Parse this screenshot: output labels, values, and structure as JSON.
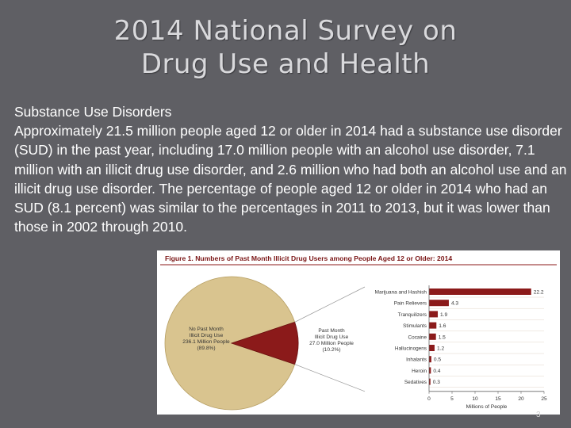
{
  "slide": {
    "title_line1": "2014 National Survey on",
    "title_line2": "Drug Use and Health",
    "heading": "Substance Use Disorders",
    "paragraph": "Approximately 21.5 million people aged 12 or older in 2014 had a substance use disorder (SUD) in the past year, including 17.0 million people with an alcohol use disorder, 7.1 million with an illicit drug use disorder, and 2.6 million who had both an alcohol use and an illicit drug use disorder. The percentage of people aged 12 or older in 2014 who had an SUD (8.1 percent) was similar to the percentages in 2011 to 2013, but it was lower than those in 2002 through 2010.",
    "page_number": "3"
  },
  "colors": {
    "background": "#5f5f64",
    "pie_none": "#d9c48f",
    "pie_users": "#8b1a1a",
    "bar": "#8b1a1a"
  },
  "chart_data": [
    {
      "type": "pie",
      "title": "Figure 1. Numbers of Past Month Illicit Drug Users among People Aged 12 or Older: 2014",
      "slices": [
        {
          "label_lines": [
            "No Past Month",
            "Illicit Drug Use",
            "236.1 Million People",
            "(89.8%)"
          ],
          "value": 236.1,
          "percent": 89.8
        },
        {
          "label_lines": [
            "Past Month",
            "Illicit Drug Use",
            "27.0 Million People",
            "(10.2%)"
          ],
          "value": 27.0,
          "percent": 10.2
        }
      ]
    },
    {
      "type": "bar",
      "orientation": "horizontal",
      "categories": [
        "Marijuana and Hashish",
        "Pain Relievers",
        "Tranquilizers",
        "Stimulants",
        "Cocaine",
        "Hallucinogens",
        "Inhalants",
        "Heroin",
        "Sedatives"
      ],
      "values": [
        22.2,
        4.3,
        1.9,
        1.6,
        1.5,
        1.2,
        0.5,
        0.4,
        0.3
      ],
      "value_labels": [
        "22.2",
        "4.3",
        "1.9",
        "1.6",
        "1.5",
        "1.2",
        "0.5",
        "0.4",
        "0.3"
      ],
      "xticks": [
        "0",
        "5",
        "10",
        "15",
        "20",
        "25"
      ],
      "xlim": [
        0,
        25
      ],
      "xlabel": "Millions of People"
    }
  ]
}
